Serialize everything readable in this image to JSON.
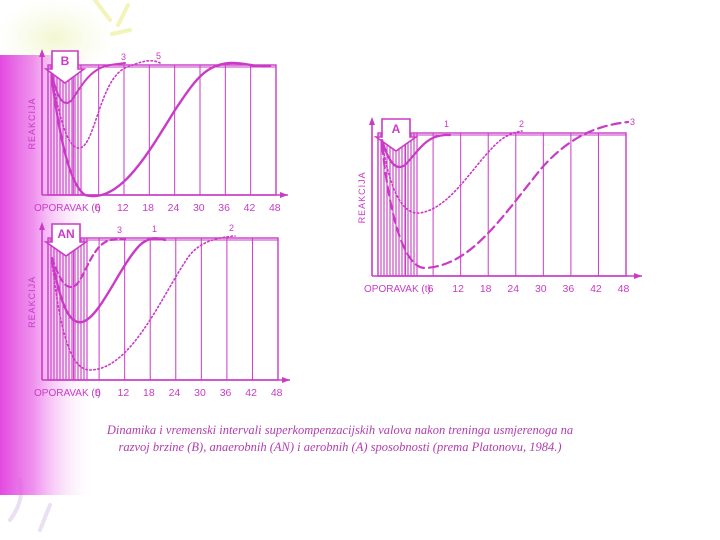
{
  "figure": {
    "caption": {
      "line1": "Dinamika i vremenski intervali superkompenzacijskih valova nakon treninga usmjerenoga na",
      "line2": "razvoj brzine (B), anaerobnih (AN) i aerobnih (A) sposobnosti (prema Platonovu, 1984.)"
    },
    "colors": {
      "ink": "#c93bc6",
      "edge": "#e23fe0",
      "paper": "#ffffff"
    },
    "panels": [
      {
        "id": "B",
        "label": "B",
        "y_label": "REAKCIJA",
        "x_label": "OPORAVAK (t)",
        "ticks": [
          "6",
          "12",
          "18",
          "24",
          "30",
          "36",
          "42",
          "48"
        ],
        "curve_labels": [
          "3",
          "5"
        ]
      },
      {
        "id": "AN",
        "label": "AN",
        "y_label": "REAKCIJA",
        "x_label": "OPORAVAK (t)",
        "ticks": [
          "6",
          "12",
          "18",
          "24",
          "30",
          "36",
          "42",
          "48"
        ],
        "curve_labels": [
          "3",
          "1",
          "2"
        ]
      },
      {
        "id": "A",
        "label": "A",
        "y_label": "REAKCIJA",
        "x_label": "OPORAVAK (t)",
        "ticks": [
          "6",
          "12",
          "18",
          "24",
          "30",
          "36",
          "42",
          "48"
        ],
        "curve_labels": [
          "1",
          "2",
          "3"
        ]
      }
    ]
  }
}
